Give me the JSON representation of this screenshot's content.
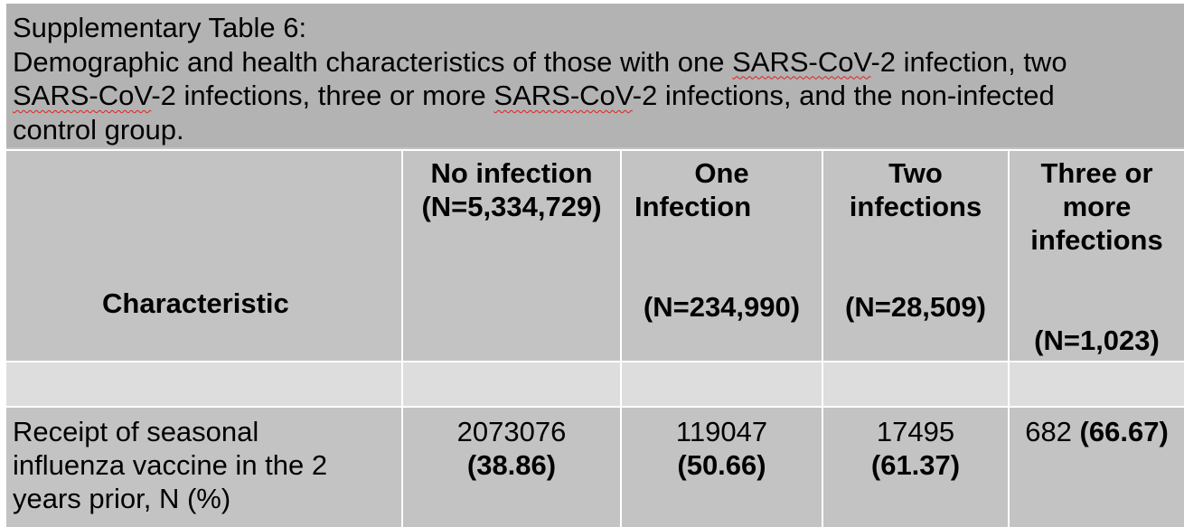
{
  "caption": {
    "table_label": "Supplementary Table 6:",
    "line2_a": "Demographic and health characteristics of those with one ",
    "line2_term": "SARS-CoV",
    "line2_b": "-2 infection, two",
    "line3_term1": "SARS-CoV",
    "line3_a": "-2 infections, three or more ",
    "line3_term2": "SARS-CoV",
    "line3_b": "-2 infections, and the non-infected",
    "line4": "control group."
  },
  "columns": {
    "characteristic": "Characteristic",
    "no_infection": {
      "label_line1": "No infection",
      "n": "(N=5,334,729)"
    },
    "one_infection": {
      "label_line1": "One",
      "label_line2": "Infection",
      "n": "(N=234,990)"
    },
    "two_infections": {
      "label_line1": "Two",
      "label_line2": "infections",
      "n": "(N=28,509)"
    },
    "three_or_more": {
      "label_line1": "Three or",
      "label_line2": "more",
      "label_line3": "infections",
      "n": "(N=1,023)"
    }
  },
  "rows": [
    {
      "label_line1": "Receipt of seasonal",
      "label_line2": "influenza vaccine in the 2",
      "label_line3": "years prior, N (%)",
      "no_infection": {
        "count": "2073076",
        "pct": "(38.86)"
      },
      "one_infection": {
        "count": "119047",
        "pct": "(50.66)"
      },
      "two_infections": {
        "count": "17495",
        "pct": "(61.37)"
      },
      "three_or_more": {
        "count": "682 ",
        "pct": "(66.67)"
      }
    }
  ]
}
